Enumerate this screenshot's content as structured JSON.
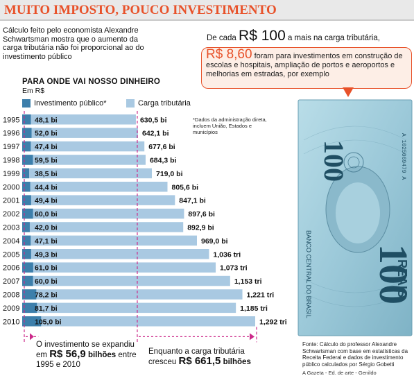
{
  "header": {
    "title": "MUITO IMPOSTO, POUCO INVESTIMENTO",
    "intro": "Cálculo feito pelo economista Alexandre Schwartsman mostra que o aumento da carga tributária não foi proporcional ao do investimento público"
  },
  "callout": {
    "line1_prefix": "De cada",
    "line1_big": "R$ 100",
    "line1_suffix": "a mais na carga tributária,",
    "box_big": "R$ 8,60",
    "box_text": "foram para investimentos em construção de escolas e hospitais, ampliação de portos e aeroportos e melhorias em estradas, por exemplo"
  },
  "note": "*Dados da administração direta, incluem União, Estados e municípios",
  "summary": {
    "left_text": "O investimento se expandiu em",
    "left_big": "R$ 56,9",
    "left_unit": "bilhões",
    "left_tail": "entre 1995 e 2010",
    "right_text": "Enquanto a carga tributária cresceu",
    "right_big": "R$ 661,5",
    "right_unit": "bilhões"
  },
  "source": "Fonte: Cálculo do professor Alexandre Schwartsman com base em estatísticas da Receita Federal e dados de investimento público calculados por Sérgio Gobetti",
  "credit": "A Gazeta - Ed. de arte - Genildo",
  "banknote": {
    "denomination": "100",
    "currency": "REAIS",
    "bank": "BANCO CENTRAL DO BRASIL",
    "serial": "A 1025069479 A"
  },
  "colors": {
    "accent": "#e8522a",
    "investment": "#3d7fab",
    "tax": "#a9c9e2",
    "guide": "#cc2a8a",
    "banknote": "#9cc9d9"
  },
  "chart_data": {
    "type": "bar",
    "title": "PARA ONDE VAI NOSSO DINHEIRO",
    "ylabel": "Em R$",
    "xlabel": "",
    "categories": [
      "1995",
      "1996",
      "1997",
      "1998",
      "1999",
      "2000",
      "2001",
      "2002",
      "2003",
      "2004",
      "2005",
      "2006",
      "2007",
      "2008",
      "2009",
      "2010"
    ],
    "series": [
      {
        "name": "Investimento público*",
        "values": [
          48.1,
          52.0,
          47.4,
          59.5,
          38.5,
          44.4,
          49.4,
          60.0,
          42.0,
          47.1,
          49.3,
          61.0,
          60.0,
          78.2,
          81.7,
          105.0
        ],
        "labels": [
          "48,1 bi",
          "52,0 bi",
          "47,4 bi",
          "59,5 bi",
          "38,5 bi",
          "44,4 bi",
          "49,4 bi",
          "60,0 bi",
          "42,0 bi",
          "47,1 bi",
          "49,3 bi",
          "61,0 bi",
          "60,0 bi",
          "78,2 bi",
          "81,7 bi",
          "105,0 bi"
        ]
      },
      {
        "name": "Carga tributária",
        "values": [
          630.5,
          642.1,
          677.6,
          684.3,
          719.0,
          805.6,
          847.1,
          897.6,
          892.9,
          969.0,
          1036,
          1073,
          1153,
          1221,
          1185,
          1292
        ],
        "labels": [
          "630,5 bi",
          "642,1 bi",
          "677,6 bi",
          "684,3 bi",
          "719,0 bi",
          "805,6 bi",
          "847,1 bi",
          "897,6 bi",
          "892,9 bi",
          "969,0 bi",
          "1,036 tri",
          "1,073 tri",
          "1,153 tri",
          "1,221 tri",
          "1,185 tri",
          "1,292 tri"
        ]
      }
    ],
    "orientation": "horizontal",
    "legend": "top-left"
  }
}
